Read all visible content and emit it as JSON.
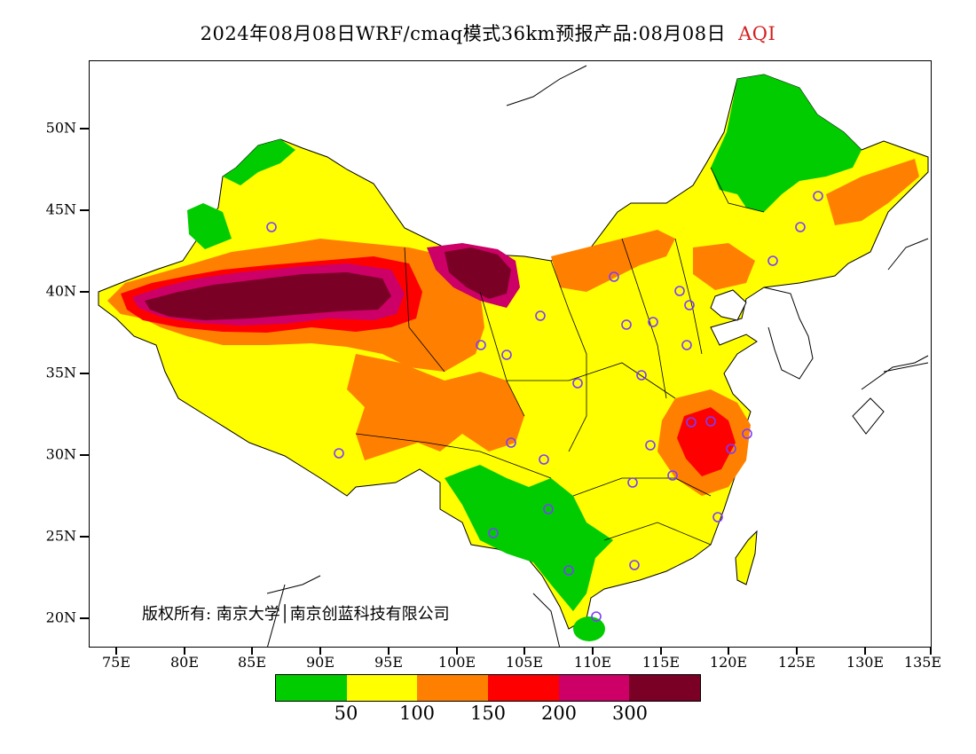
{
  "title": {
    "text": "2024年08月08日WRF/cmaq模式36km预报产品:08月08日",
    "variable": "AQI"
  },
  "map": {
    "lat_labels": [
      "50N",
      "45N",
      "40N",
      "35N",
      "30N",
      "25N",
      "20N"
    ],
    "lon_labels": [
      "75E",
      "80E",
      "85E",
      "90E",
      "95E",
      "100E",
      "105E",
      "110E",
      "115E",
      "120E",
      "125E",
      "130E",
      "135E"
    ],
    "copyright": "版权所有: 南京大学│南京创蓝科技有限公司",
    "station_marker_color": "#7a3cff"
  },
  "legend": {
    "colors": [
      "#00cc00",
      "#ffff00",
      "#ff8000",
      "#ff0000",
      "#cc0066",
      "#7a0026"
    ],
    "labels": [
      "50",
      "100",
      "150",
      "200",
      "300"
    ]
  }
}
